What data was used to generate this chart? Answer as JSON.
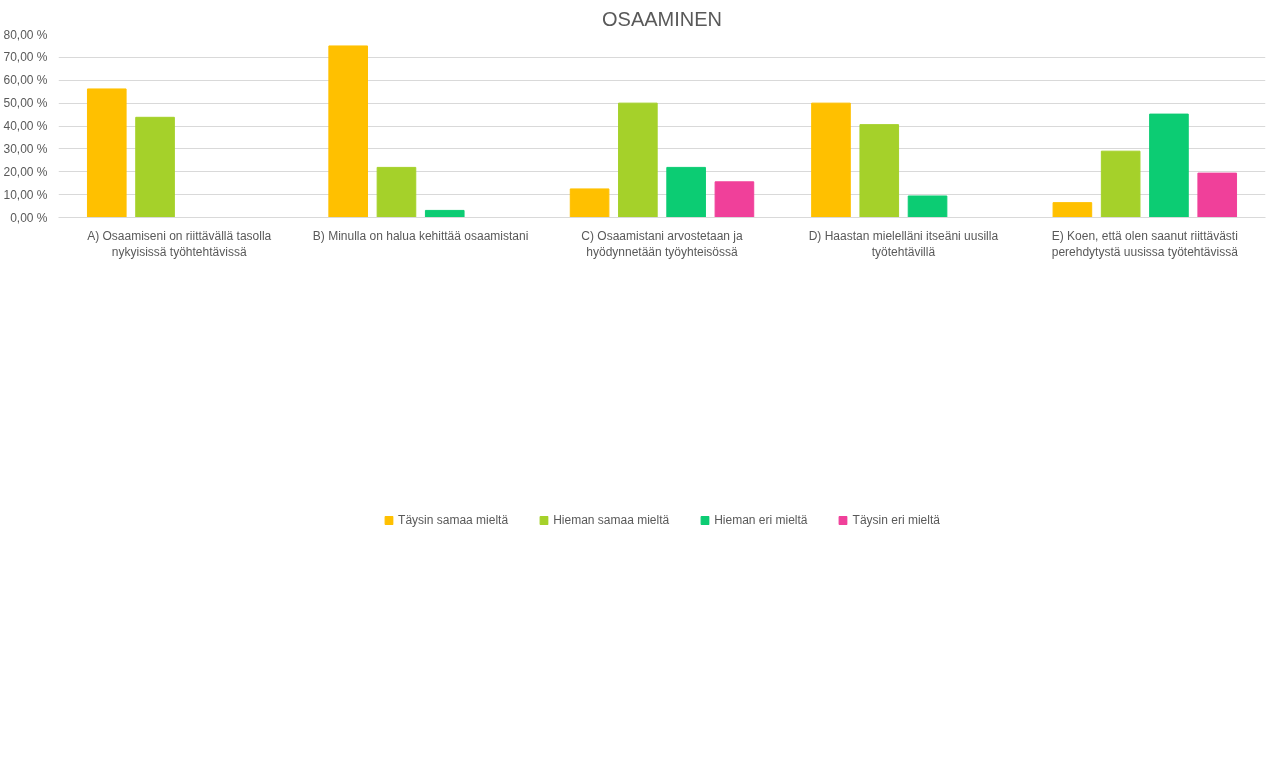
{
  "chart_data": {
    "type": "bar",
    "title": "OSAAMINEN",
    "categories": [
      "A) Osaamiseni on riittävällä tasolla nykyisissä työhtehtävissä",
      "B) Minulla on halua kehittää osaamistani",
      "C) Osaamistani arvostetaan ja hyödynnetään työyhteisössä",
      "D) Haastan mielelläni itseäni uusilla työtehtävillä",
      "E) Koen, että olen saanut riittävästi perehdytystä uusissa työtehtävissä"
    ],
    "series": [
      {
        "name": "Täysin samaa mieltä",
        "color": "#ffc000",
        "values": [
          56.2,
          75.0,
          12.5,
          50.0,
          6.5
        ]
      },
      {
        "name": "Hieman samaa mieltä",
        "color": "#a5d12a",
        "values": [
          43.8,
          21.9,
          50.0,
          40.6,
          29.0
        ]
      },
      {
        "name": "Hieman eri mieltä",
        "color": "#0ccc73",
        "values": [
          0,
          3.1,
          21.9,
          9.4,
          45.2
        ]
      },
      {
        "name": "Täysin eri mieltä",
        "color": "#f0409a",
        "values": [
          0,
          0,
          15.6,
          0,
          19.4
        ]
      }
    ],
    "ylim": [
      0,
      80
    ],
    "yticks": [
      {
        "value": 0,
        "label": "0,00 %"
      },
      {
        "value": 10,
        "label": "10,00 %"
      },
      {
        "value": 20,
        "label": "20,00 %"
      },
      {
        "value": 30,
        "label": "30,00 %"
      },
      {
        "value": 40,
        "label": "40,00 %"
      },
      {
        "value": 50,
        "label": "50,00 %"
      },
      {
        "value": 60,
        "label": "60,00 %"
      },
      {
        "value": 70,
        "label": "70,00 %"
      },
      {
        "value": 80,
        "label": "80,00 %"
      }
    ],
    "grid": "y",
    "legend": "bottom"
  }
}
